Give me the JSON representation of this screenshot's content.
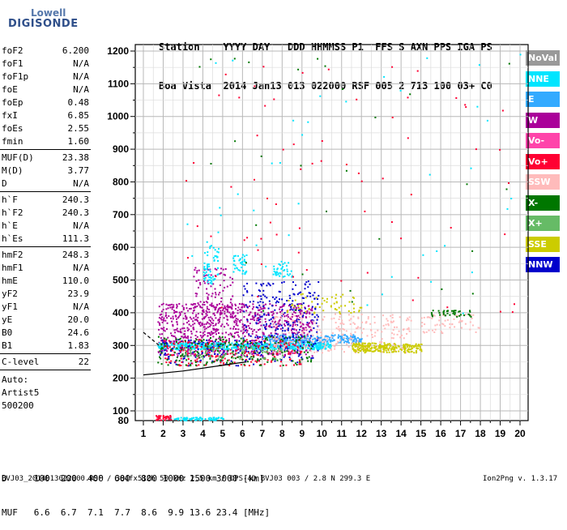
{
  "logo": {
    "line1": "Lowell",
    "line2": "DIGISONDE"
  },
  "header": {
    "labels": "Station    YYYY DAY   DDD HHMMSS P1  FFS S AXN PPS IGA PS",
    "values": "Boa Vista  2014 Jan13 013 022000 RSF 005 2 713 100 03+ C0"
  },
  "params_group1": [
    {
      "name": "foF2",
      "value": "6.200"
    },
    {
      "name": "foF1",
      "value": "N/A"
    },
    {
      "name": "foF1p",
      "value": "N/A"
    },
    {
      "name": "foE",
      "value": "N/A"
    },
    {
      "name": "foEp",
      "value": "0.48"
    },
    {
      "name": "fxI",
      "value": "6.85"
    },
    {
      "name": "foEs",
      "value": "2.55"
    },
    {
      "name": "fmin",
      "value": "1.60"
    }
  ],
  "params_group2": [
    {
      "name": "MUF(D)",
      "value": "23.38"
    },
    {
      "name": "M(D)",
      "value": "3.77"
    },
    {
      "name": "D",
      "value": "N/A"
    }
  ],
  "params_group3": [
    {
      "name": "h`F",
      "value": "240.3"
    },
    {
      "name": "h`F2",
      "value": "240.3"
    },
    {
      "name": "h`E",
      "value": "N/A"
    },
    {
      "name": "h`Es",
      "value": "111.3"
    }
  ],
  "params_group4": [
    {
      "name": "hmF2",
      "value": "248.3"
    },
    {
      "name": "hmF1",
      "value": "N/A"
    },
    {
      "name": "hmE",
      "value": "110.0"
    },
    {
      "name": "yF2",
      "value": "23.9"
    },
    {
      "name": "yF1",
      "value": "N/A"
    },
    {
      "name": "yE",
      "value": "20.0"
    },
    {
      "name": "B0",
      "value": "24.6"
    },
    {
      "name": "B1",
      "value": "1.83"
    }
  ],
  "clevel": {
    "name": "C-level",
    "value": "22"
  },
  "autoscaling": {
    "line1": "Auto:",
    "line2": "Artist5",
    "line3": "500200"
  },
  "legend": [
    {
      "label": "NoVal",
      "color": "#999999"
    },
    {
      "label": "NNE",
      "color": "#00e5ff"
    },
    {
      "label": "E",
      "color": "#33aaff"
    },
    {
      "label": "W",
      "color": "#aa0099"
    },
    {
      "label": "Vo-",
      "color": "#ff44aa"
    },
    {
      "label": "Vo+",
      "color": "#ff0033"
    },
    {
      "label": "SSW",
      "color": "#ffbbbb"
    },
    {
      "label": "X-",
      "color": "#007700"
    },
    {
      "label": "X+",
      "color": "#66bb66"
    },
    {
      "label": "SSE",
      "color": "#cccc00"
    },
    {
      "label": "NNW",
      "color": "#0000cc"
    }
  ],
  "footer": {
    "d_row": "D     100  200  400  600  800 1000 1500 3000 [km]",
    "muf_row": "MUF   6.6  6.7  7.1  7.7  8.6  9.9 13.6 23.4 [MHz]",
    "file": "BVJ03_2014013022000.RSF / 384fx512h 50 kHz 2.5 km / DPS-4D BVJ03 003 / 2.8 N 299.3 E",
    "version": "Ion2Png v. 1.3.17"
  },
  "chart_data": {
    "type": "scatter",
    "xlim": [
      1,
      20
    ],
    "ylim": [
      80,
      1200
    ],
    "x_ticks": [
      1,
      2,
      3,
      4,
      5,
      6,
      7,
      8,
      9,
      10,
      11,
      12,
      13,
      14,
      15,
      16,
      17,
      18,
      19,
      20
    ],
    "y_ticks": [
      80,
      100,
      200,
      300,
      400,
      500,
      600,
      700,
      800,
      900,
      1000,
      1100,
      1200
    ],
    "grid": true,
    "clusters": [
      {
        "series": "W",
        "x": [
          1.7,
          9.5
        ],
        "y": [
          270,
          430
        ],
        "n": 900
      },
      {
        "series": "W",
        "x": [
          3.5,
          5.5
        ],
        "y": [
          380,
          540
        ],
        "n": 120
      },
      {
        "series": "NNE",
        "x": [
          1.7,
          10.5
        ],
        "y": [
          290,
          310
        ],
        "n": 500
      },
      {
        "series": "NNE",
        "x": [
          4.0,
          4.8
        ],
        "y": [
          490,
          620
        ],
        "n": 60
      },
      {
        "series": "NNE",
        "x": [
          5.5,
          6.2
        ],
        "y": [
          520,
          580
        ],
        "n": 40
      },
      {
        "series": "NNE",
        "x": [
          7.5,
          8.5
        ],
        "y": [
          510,
          560
        ],
        "n": 40
      },
      {
        "series": "E",
        "x": [
          7.0,
          12.0
        ],
        "y": [
          310,
          335
        ],
        "n": 250
      },
      {
        "series": "NNW",
        "x": [
          6.0,
          9.8
        ],
        "y": [
          250,
          500
        ],
        "n": 250
      },
      {
        "series": "NNW",
        "x": [
          1.8,
          7.0
        ],
        "y": [
          240,
          320
        ],
        "n": 120
      },
      {
        "series": "Vo+",
        "x": [
          2.0,
          9.0
        ],
        "y": [
          240,
          320
        ],
        "n": 200
      },
      {
        "series": "X-",
        "x": [
          1.7,
          9.5
        ],
        "y": [
          240,
          330
        ],
        "n": 200
      },
      {
        "series": "X+",
        "x": [
          3.0,
          8.0
        ],
        "y": [
          260,
          300
        ],
        "n": 80
      },
      {
        "series": "SSW",
        "x": [
          7.5,
          14.5
        ],
        "y": [
          280,
          400
        ],
        "n": 250
      },
      {
        "series": "SSE",
        "x": [
          11.5,
          15.0
        ],
        "y": [
          280,
          310
        ],
        "n": 250
      },
      {
        "series": "SSE",
        "x": [
          8.0,
          12.0
        ],
        "y": [
          400,
          460
        ],
        "n": 60
      },
      {
        "series": "SSW",
        "x": [
          15.0,
          18.0
        ],
        "y": [
          340,
          400
        ],
        "n": 60
      },
      {
        "series": "X-",
        "x": [
          15.5,
          17.5
        ],
        "y": [
          390,
          410
        ],
        "n": 40
      },
      {
        "series": "NNE",
        "x": [
          2.2,
          5.0
        ],
        "y": [
          82,
          88
        ],
        "n": 80
      },
      {
        "series": "Vo+",
        "x": [
          1.6,
          2.4
        ],
        "y": [
          82,
          92
        ],
        "n": 40
      },
      {
        "series": "Vo+",
        "x": [
          3.0,
          20.0
        ],
        "y": [
          400,
          1200
        ],
        "n": 70
      },
      {
        "series": "NNE",
        "x": [
          3.0,
          20.0
        ],
        "y": [
          400,
          1200
        ],
        "n": 40
      },
      {
        "series": "X-",
        "x": [
          3.0,
          20.0
        ],
        "y": [
          400,
          1200
        ],
        "n": 30
      }
    ],
    "traces": [
      {
        "name": "h'F2 trace",
        "style": "solid",
        "x": [
          1.0,
          3.0,
          6.2
        ],
        "y": [
          210,
          222,
          250
        ]
      },
      {
        "name": "dashed trace",
        "style": "dashed",
        "x": [
          1.0,
          1.8
        ],
        "y": [
          340,
          300
        ]
      }
    ]
  }
}
